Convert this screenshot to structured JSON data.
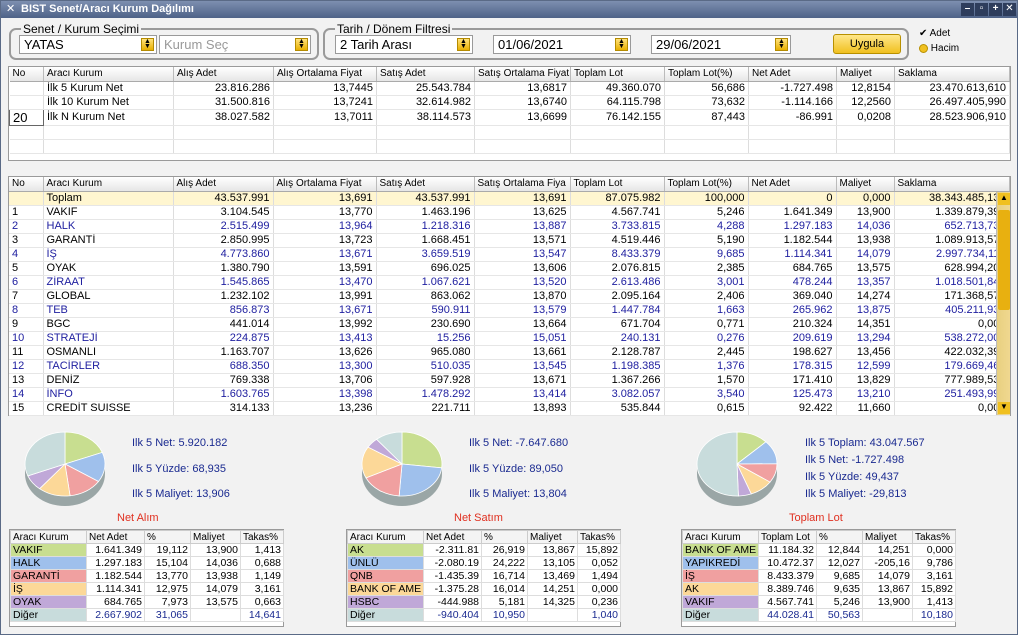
{
  "window": {
    "title": "BIST Senet/Aracı Kurum Dağılımı"
  },
  "filters": {
    "senet_group_label": "Senet / Kurum Seçimi",
    "senet_value": "YATAS",
    "kurum_placeholder": "Kurum Seç",
    "date_group_label": "Tarih / Dönem Filtresi",
    "period_value": "2 Tarih Arası",
    "start_date": "01/06/2021",
    "end_date": "29/06/2021",
    "apply_label": "Uygula",
    "adet_label": "Adet",
    "hacim_label": "Hacim"
  },
  "top_table": {
    "headers": [
      "No",
      "Aracı Kurum",
      "Alış Adet",
      "Alış Ortalama Fiyat",
      "Satış Adet",
      "Satış Ortalama Fiyat",
      "Toplam Lot",
      "Toplam Lot(%)",
      "Net Adet",
      "Maliyet",
      "Saklama"
    ],
    "rows": [
      [
        "",
        "İlk 5 Kurum Net",
        "23.816.286",
        "13,7445",
        "25.543.784",
        "13,6817",
        "49.360.070",
        "56,686",
        "-1.727.498",
        "12,8154",
        "23.470.613,610"
      ],
      [
        "",
        "İlk 10 Kurum Net",
        "31.500.816",
        "13,7241",
        "32.614.982",
        "13,6740",
        "64.115.798",
        "73,632",
        "-1.114.166",
        "12,2560",
        "26.497.405,990"
      ],
      [
        "20",
        "İlk N Kurum Net",
        "38.027.582",
        "13,7011",
        "38.114.573",
        "13,6699",
        "76.142.155",
        "87,443",
        "-86.991",
        "0,0208",
        "28.523.906,910"
      ]
    ]
  },
  "main_table": {
    "headers": [
      "No",
      "Aracı Kurum",
      "Alış Adet",
      "Alış Ortalama Fiyat",
      "Satış Adet",
      "Satış Ortalama Fiya",
      "Toplam Lot",
      "Toplam Lot(%)",
      "Net Adet",
      "Maliyet",
      "Saklama"
    ],
    "rows": [
      [
        "",
        "Toplam",
        "43.537.991",
        "13,691",
        "43.537.991",
        "13,691",
        "87.075.982",
        "100,000",
        "0",
        "0,000",
        "38.343.485,130"
      ],
      [
        "1",
        "VAKIF",
        "3.104.545",
        "13,770",
        "1.463.196",
        "13,625",
        "4.567.741",
        "5,246",
        "1.641.349",
        "13,900",
        "1.339.879,390"
      ],
      [
        "2",
        "HALK",
        "2.515.499",
        "13,964",
        "1.218.316",
        "13,887",
        "3.733.815",
        "4,288",
        "1.297.183",
        "14,036",
        "652.713,730"
      ],
      [
        "3",
        "GARANTİ",
        "2.850.995",
        "13,723",
        "1.668.451",
        "13,571",
        "4.519.446",
        "5,190",
        "1.182.544",
        "13,938",
        "1.089.913,570"
      ],
      [
        "4",
        "İŞ",
        "4.773.860",
        "13,671",
        "3.659.519",
        "13,547",
        "8.433.379",
        "9,685",
        "1.114.341",
        "14,079",
        "2.997.734,110"
      ],
      [
        "5",
        "OYAK",
        "1.380.790",
        "13,591",
        "696.025",
        "13,606",
        "2.076.815",
        "2,385",
        "684.765",
        "13,575",
        "628.994,200"
      ],
      [
        "6",
        "ZİRAAT",
        "1.545.865",
        "13,470",
        "1.067.621",
        "13,520",
        "2.613.486",
        "3,001",
        "478.244",
        "13,357",
        "1.018.501,840"
      ],
      [
        "7",
        "GLOBAL",
        "1.232.102",
        "13,991",
        "863.062",
        "13,870",
        "2.095.164",
        "2,406",
        "369.040",
        "14,274",
        "171.368,570"
      ],
      [
        "8",
        "TEB",
        "856.873",
        "13,671",
        "590.911",
        "13,579",
        "1.447.784",
        "1,663",
        "265.962",
        "13,875",
        "405.211,930"
      ],
      [
        "9",
        "BGC",
        "441.014",
        "13,992",
        "230.690",
        "13,664",
        "671.704",
        "0,771",
        "210.324",
        "14,351",
        "0,000"
      ],
      [
        "10",
        "STRATEJİ",
        "224.875",
        "13,413",
        "15.256",
        "15,051",
        "240.131",
        "0,276",
        "209.619",
        "13,294",
        "538.272,000"
      ],
      [
        "11",
        "OSMANLI",
        "1.163.707",
        "13,626",
        "965.080",
        "13,661",
        "2.128.787",
        "2,445",
        "198.627",
        "13,456",
        "422.032,390"
      ],
      [
        "12",
        "TACİRLER",
        "688.350",
        "13,300",
        "510.035",
        "13,545",
        "1.198.385",
        "1,376",
        "178.315",
        "12,599",
        "179.669,460"
      ],
      [
        "13",
        "DENİZ",
        "769.338",
        "13,706",
        "597.928",
        "13,671",
        "1.367.266",
        "1,570",
        "171.410",
        "13,829",
        "777.989,530"
      ],
      [
        "14",
        "İNFO",
        "1.603.765",
        "13,398",
        "1.478.292",
        "13,414",
        "3.082.057",
        "3,540",
        "125.473",
        "13,210",
        "251.493,990"
      ],
      [
        "15",
        "CREDİT SUISSE",
        "314.133",
        "13,236",
        "221.711",
        "13,893",
        "535.844",
        "0,615",
        "92.422",
        "11,660",
        "0,000"
      ]
    ]
  },
  "panels": [
    {
      "title": "Net Alım",
      "stats": [
        "Ilk 5 Net: 5.920.182",
        "Ilk 5 Yüzde: 68,935",
        "Ilk 5 Maliyet: 13,906"
      ],
      "headers": [
        "Aracı Kurum",
        "Net Adet",
        "%",
        "Maliyet",
        "Takas%"
      ],
      "rows": [
        [
          "VAKIF",
          "1.641.349",
          "19,112",
          "13,900",
          "1,413"
        ],
        [
          "HALK",
          "1.297.183",
          "15,104",
          "14,036",
          "0,688"
        ],
        [
          "GARANTİ",
          "1.182.544",
          "13,770",
          "13,938",
          "1,149"
        ],
        [
          "İŞ",
          "1.114.341",
          "12,975",
          "14,079",
          "3,161"
        ],
        [
          "OYAK",
          "684.765",
          "7,973",
          "13,575",
          "0,663"
        ],
        [
          "Diğer",
          "2.667.902",
          "31,065",
          "",
          "14,641"
        ]
      ],
      "slices": [
        19.112,
        15.104,
        13.77,
        12.975,
        7.973,
        31.065
      ]
    },
    {
      "title": "Net Satım",
      "stats": [
        "Ilk 5 Net: -7.647.680",
        "Ilk 5 Yüzde: 89,050",
        "Ilk 5 Maliyet: 13,804"
      ],
      "headers": [
        "Aracı Kurum",
        "Net Adet",
        "%",
        "Maliyet",
        "Takas%"
      ],
      "rows": [
        [
          "AK",
          "-2.311.81",
          "26,919",
          "13,867",
          "15,892"
        ],
        [
          "ÜNLÜ",
          "-2.080.19",
          "24,222",
          "13,105",
          "0,052"
        ],
        [
          "QNB",
          "-1.435.39",
          "16,714",
          "13,469",
          "1,494"
        ],
        [
          "BANK OF AME",
          "-1.375.28",
          "16,014",
          "14,251",
          "0,000"
        ],
        [
          "HSBC",
          "-444.988",
          "5,181",
          "14,325",
          "0,236"
        ],
        [
          "Diğer",
          "-940.404",
          "10,950",
          "",
          "1,040"
        ]
      ],
      "slices": [
        26.919,
        24.222,
        16.714,
        16.014,
        5.181,
        10.95
      ]
    },
    {
      "title": "Toplam Lot",
      "stats": [
        "Ilk 5 Toplam: 43.047.567",
        "Ilk 5 Net: -1.727.498",
        "Ilk 5 Yüzde: 49,437",
        "Ilk 5 Maliyet: -29,813"
      ],
      "headers": [
        "Aracı Kurum",
        "Toplam Lot",
        "%",
        "Maliyet",
        "Takas%"
      ],
      "rows": [
        [
          "BANK OF AME",
          "11.184.32",
          "12,844",
          "14,251",
          "0,000"
        ],
        [
          "YAPIKREDİ",
          "10.472.37",
          "12,027",
          "-205,16",
          "9,786"
        ],
        [
          "İŞ",
          "8.433.379",
          "9,685",
          "14,079",
          "3,161"
        ],
        [
          "AK",
          "8.389.746",
          "9,635",
          "13,867",
          "15,892"
        ],
        [
          "VAKIF",
          "4.567.741",
          "5,246",
          "13,900",
          "1,413"
        ],
        [
          "Diğer",
          "44.028.41",
          "50,563",
          "",
          "10,180"
        ]
      ],
      "slices": [
        12.844,
        12.027,
        9.685,
        9.635,
        5.246,
        50.563
      ]
    }
  ],
  "colors": {
    "slices": [
      "#c8de90",
      "#9fc0ec",
      "#f0a0a0",
      "#fcd898",
      "#c0a8d8",
      "#c8dcdc"
    ],
    "blue_text": "#2020a0"
  }
}
